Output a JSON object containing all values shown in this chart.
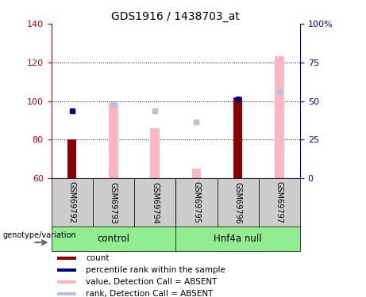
{
  "title": "GDS1916 / 1438703_at",
  "samples": [
    "GSM69792",
    "GSM69793",
    "GSM69794",
    "GSM69795",
    "GSM69796",
    "GSM69797"
  ],
  "ylim_left": [
    60,
    140
  ],
  "ylim_right": [
    0,
    100
  ],
  "yticks_left": [
    60,
    80,
    100,
    120,
    140
  ],
  "yticks_right": [
    0,
    25,
    50,
    75,
    100
  ],
  "ytick_labels_right": [
    "0",
    "25",
    "50",
    "75",
    "100%"
  ],
  "bar_bottom": 60,
  "count_bars": {
    "GSM69792": 80,
    "GSM69796": 102
  },
  "absent_value_bars": {
    "GSM69793": 99,
    "GSM69794": 86,
    "GSM69795": 65,
    "GSM69797": 123
  },
  "percentile_dots": {
    "GSM69792": 95,
    "GSM69796": 101
  },
  "absent_rank_dots": {
    "GSM69793": 98,
    "GSM69794": 95,
    "GSM69795": 89,
    "GSM69797": 105
  },
  "count_color": "#8B0000",
  "percentile_color": "#00008B",
  "absent_value_color": "#FFB6C1",
  "absent_rank_color": "#B0C4DE",
  "group_colors": [
    "#90EE90",
    "#90EE90"
  ],
  "group_names": [
    "control",
    "Hnf4a null"
  ],
  "left_axis_color": "#CC0000",
  "right_axis_color": "#0000CC",
  "legend_entries": [
    {
      "label": "count",
      "color": "#8B0000"
    },
    {
      "label": "percentile rank within the sample",
      "color": "#00008B"
    },
    {
      "label": "value, Detection Call = ABSENT",
      "color": "#FFB6C1"
    },
    {
      "label": "rank, Detection Call = ABSENT",
      "color": "#B0C4DE"
    }
  ]
}
